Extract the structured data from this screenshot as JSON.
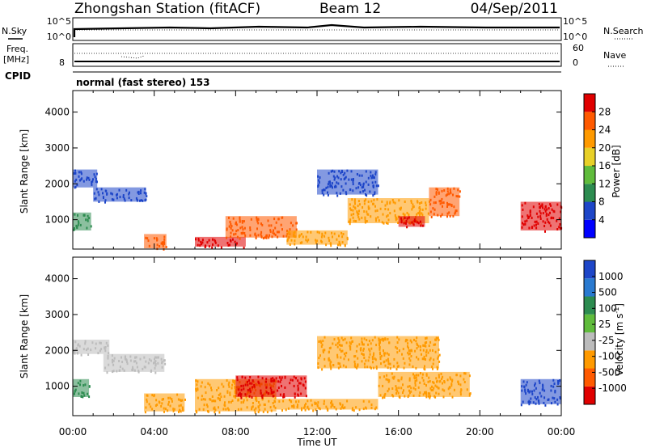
{
  "header": {
    "station": "Zhongshan Station (fitACF)",
    "beam": "Beam 12",
    "date": "04/Sep/2011",
    "cpid_label": "CPID",
    "mode": "normal (fast stereo) 153"
  },
  "aux_panels": {
    "nsky": {
      "label": "N.Sky",
      "left_ticks": [
        "10^5",
        "10^0"
      ],
      "right_label": "N.Search",
      "right_ticks": [
        "10^5",
        "10^0"
      ]
    },
    "freq": {
      "label_line1": "Freq.",
      "label_line2": "[MHz]",
      "left_ticks": [
        "8"
      ],
      "right_label": "Nave",
      "right_ticks": [
        "60",
        "0"
      ]
    }
  },
  "chart_data": [
    {
      "type": "heatmap",
      "name": "power",
      "ylabel": "Slant Range [km]",
      "ylim": [
        180,
        4600
      ],
      "yticks": [
        "4000",
        "3000",
        "2000",
        "1000"
      ],
      "colorbar": {
        "label": "Power [dB]",
        "ticks": [
          "28",
          "24",
          "20",
          "16",
          "12",
          "8",
          "4"
        ],
        "colors": [
          "#0000ff",
          "#1e46c8",
          "#2d8c50",
          "#60bc3c",
          "#e8d028",
          "#ff9a00",
          "#ff5a00",
          "#e00000"
        ]
      },
      "regions": [
        {
          "t": [
            0.0,
            1.2
          ],
          "r": [
            1900,
            2400
          ],
          "c": "#1e46c8"
        },
        {
          "t": [
            1.0,
            3.6
          ],
          "r": [
            1500,
            1900
          ],
          "c": "#1e46c8"
        },
        {
          "t": [
            0.0,
            0.9
          ],
          "r": [
            700,
            1200
          ],
          "c": "#2d8c50"
        },
        {
          "t": [
            3.5,
            4.6
          ],
          "r": [
            200,
            600
          ],
          "c": "#ff5a00"
        },
        {
          "t": [
            6.0,
            8.5
          ],
          "r": [
            250,
            520
          ],
          "c": "#e00000"
        },
        {
          "t": [
            7.5,
            11.0
          ],
          "r": [
            500,
            1100
          ],
          "c": "#ff5a00"
        },
        {
          "t": [
            10.5,
            13.5
          ],
          "r": [
            300,
            700
          ],
          "c": "#ff9a00"
        },
        {
          "t": [
            12.0,
            15.0
          ],
          "r": [
            1700,
            2400
          ],
          "c": "#1e46c8"
        },
        {
          "t": [
            13.5,
            17.5
          ],
          "r": [
            900,
            1600
          ],
          "c": "#ff9a00"
        },
        {
          "t": [
            16.0,
            17.3
          ],
          "r": [
            800,
            1100
          ],
          "c": "#e00000"
        },
        {
          "t": [
            17.5,
            19.0
          ],
          "r": [
            1100,
            1900
          ],
          "c": "#ff5a00"
        },
        {
          "t": [
            22.0,
            24.0
          ],
          "r": [
            700,
            1500
          ],
          "c": "#e00000"
        }
      ]
    },
    {
      "type": "heatmap",
      "name": "velocity",
      "ylabel": "Slant Range [km]",
      "ylim": [
        180,
        4600
      ],
      "yticks": [
        "4000",
        "3000",
        "2000",
        "1000"
      ],
      "colorbar": {
        "label": "Velocity [m s",
        "label_sup": "-1",
        "label_end": "]",
        "ticks": [
          "1000",
          "500",
          "100",
          "25",
          "-25",
          "-100",
          "-500",
          "-1000"
        ],
        "colors": [
          "#e00000",
          "#ff5a00",
          "#ff9a00",
          "#bcbcbc",
          "#60bc3c",
          "#2d8c50",
          "#2a7ad0",
          "#1e46c8"
        ]
      },
      "regions": [
        {
          "t": [
            0.0,
            1.8
          ],
          "r": [
            1900,
            2300
          ],
          "c": "#bcbcbc"
        },
        {
          "t": [
            1.5,
            4.5
          ],
          "r": [
            1400,
            1900
          ],
          "c": "#bcbcbc"
        },
        {
          "t": [
            0.0,
            0.8
          ],
          "r": [
            700,
            1200
          ],
          "c": "#2d8c50"
        },
        {
          "t": [
            3.5,
            5.5
          ],
          "r": [
            300,
            800
          ],
          "c": "#ff9a00"
        },
        {
          "t": [
            6.0,
            10.0
          ],
          "r": [
            300,
            1200
          ],
          "c": "#ff9a00"
        },
        {
          "t": [
            8.0,
            11.5
          ],
          "r": [
            700,
            1300
          ],
          "c": "#e00000"
        },
        {
          "t": [
            10.0,
            15.0
          ],
          "r": [
            350,
            650
          ],
          "c": "#ff9a00"
        },
        {
          "t": [
            12.0,
            18.0
          ],
          "r": [
            1500,
            2400
          ],
          "c": "#ff9a00"
        },
        {
          "t": [
            15.0,
            19.5
          ],
          "r": [
            700,
            1400
          ],
          "c": "#ff9a00"
        },
        {
          "t": [
            22.0,
            24.0
          ],
          "r": [
            500,
            1200
          ],
          "c": "#1e46c8"
        }
      ]
    }
  ],
  "x_axis": {
    "ticks": [
      "00:00",
      "04:00",
      "08:00",
      "12:00",
      "16:00",
      "20:00",
      "00:00"
    ],
    "label": "Time UT"
  }
}
